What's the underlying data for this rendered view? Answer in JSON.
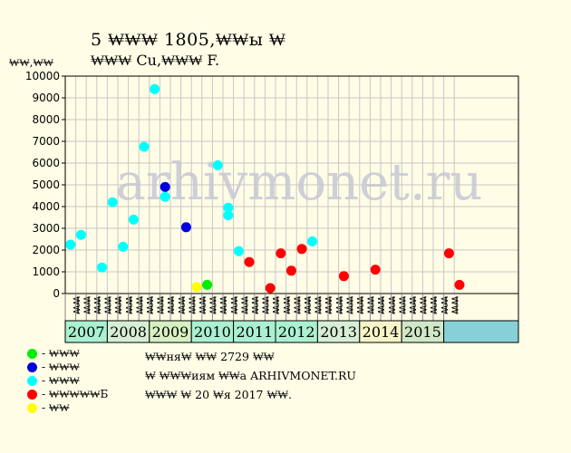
{
  "title_line1": "5 ₩₩₩ 1805,₩₩ы ₩",
  "title_line2": "₩₩₩ Cu,₩₩₩ F.",
  "watermark": "arhivmonet.ru",
  "note_lines": [
    "₩₩ня₩ ₩₩ 2729 ₩₩",
    "₩ ₩₩₩иям ₩₩а ARHIVMONET.RU",
    "₩₩₩ ₩ 20 ₩я 2017 ₩₩."
  ],
  "legend": [
    {
      "label": "- ₩₩₩",
      "color": "#00ee00"
    },
    {
      "label": "- ₩₩₩",
      "color": "#0000dd"
    },
    {
      "label": "- ₩₩₩",
      "color": "#00ffff"
    },
    {
      "label": "- ₩₩₩₩₩Б",
      "color": "#ff0000"
    },
    {
      "label": "- ₩₩",
      "color": "#ffff00"
    }
  ],
  "chart_data": {
    "type": "scatter",
    "ylabel": "₩₩,₩₩",
    "ylim": [
      0,
      10000
    ],
    "yticks": [
      0,
      1000,
      2000,
      3000,
      4000,
      5000,
      6000,
      7000,
      8000,
      9000,
      10000
    ],
    "grid": true,
    "slot_labels_repeat": [
      "₩₩",
      "₩₩",
      "₩₩",
      "₩₩"
    ],
    "years": [
      "2007",
      "2008",
      "2009",
      "2010",
      "2011",
      "2012",
      "2013",
      "2014",
      "2015"
    ],
    "year_colors": [
      "#aaf0d1",
      "#d6eed5",
      "#d6f0c2",
      "#aaf0d1",
      "#aaf0d1",
      "#aaf0d1",
      "#d6eed5",
      "#f5f5c8",
      "#cfe8c8"
    ],
    "series": [
      {
        "color": "#00ffff",
        "points": [
          [
            0,
            2250
          ],
          [
            1,
            2700
          ],
          [
            3,
            1200
          ],
          [
            4,
            4200
          ],
          [
            5,
            2150
          ],
          [
            6,
            3400
          ],
          [
            7,
            6750
          ],
          [
            8,
            9400
          ],
          [
            9,
            4450
          ],
          [
            14,
            5900
          ],
          [
            15,
            3950
          ],
          [
            15,
            3600
          ],
          [
            16,
            1950
          ],
          [
            23,
            2400
          ]
        ]
      },
      {
        "color": "#0000dd",
        "points": [
          [
            9,
            4900
          ],
          [
            11,
            3050
          ]
        ]
      },
      {
        "color": "#ff0000",
        "points": [
          [
            17,
            1450
          ],
          [
            19,
            250
          ],
          [
            20,
            1850
          ],
          [
            21,
            1050
          ],
          [
            22,
            2050
          ],
          [
            26,
            800
          ],
          [
            29,
            1100
          ],
          [
            36,
            1850
          ],
          [
            37,
            400
          ]
        ]
      },
      {
        "color": "#00ee00",
        "points": [
          [
            13,
            400
          ]
        ]
      },
      {
        "color": "#ffff00",
        "points": [
          [
            12,
            300
          ]
        ]
      }
    ]
  }
}
